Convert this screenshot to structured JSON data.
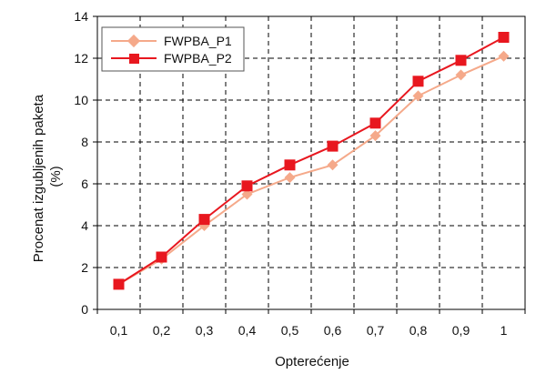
{
  "chart_data": {
    "type": "line",
    "x": [
      "0,1",
      "0,2",
      "0,3",
      "0,4",
      "0,5",
      "0,6",
      "0,7",
      "0,8",
      "0,9",
      "1"
    ],
    "series": [
      {
        "name": "FWPBA_P1",
        "color": "#f5a98a",
        "marker": "diamond",
        "values": [
          1.2,
          2.4,
          4.0,
          5.5,
          6.3,
          6.9,
          8.3,
          10.2,
          11.2,
          12.1
        ]
      },
      {
        "name": "FWPBA_P2",
        "color": "#e8171f",
        "marker": "square",
        "values": [
          1.2,
          2.5,
          4.3,
          5.9,
          6.9,
          7.8,
          8.9,
          10.9,
          11.9,
          13.0
        ]
      }
    ],
    "xlabel": "Opterećenje",
    "ylabel_lines": [
      "Procenat izgubljenih paketa",
      "(%)"
    ],
    "ylim": [
      0,
      14
    ],
    "yticks": [
      "0",
      "2",
      "4",
      "6",
      "8",
      "10",
      "12",
      "14"
    ],
    "grid": true,
    "legend_position": "top-left"
  }
}
